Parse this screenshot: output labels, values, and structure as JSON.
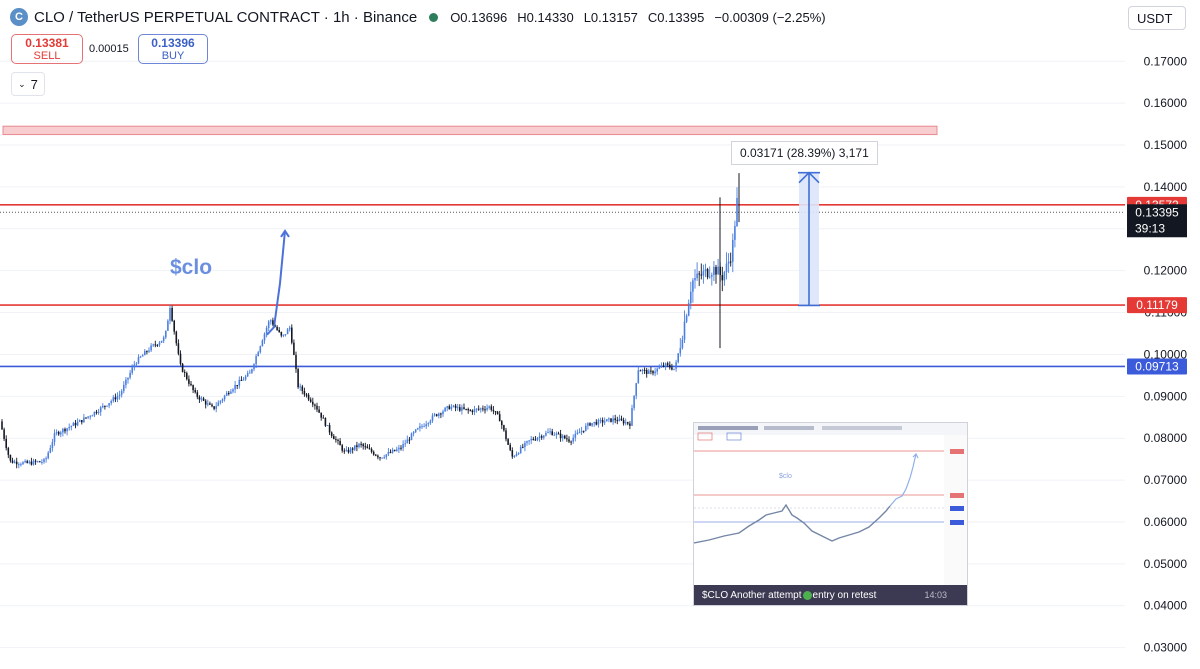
{
  "header": {
    "title": "CLO / TetherUS PERPETUAL CONTRACT · 1h · Binance",
    "open": "O0.13696",
    "high": "H0.14330",
    "low": "L0.13157",
    "close": "C0.13395",
    "change": "−0.00309 (−2.25%)"
  },
  "currency": "USDT",
  "sell": {
    "price": "0.13381",
    "label": "SELL"
  },
  "buy": {
    "price": "0.13396",
    "label": "BUY"
  },
  "spread": "0.00015",
  "indicator_count": "7",
  "measure_label": "0.03171 (28.39%) 3,171",
  "annotation": "$clo",
  "inset": {
    "caption_before": "$CLO Another attempt",
    "caption_after": "entry on retest",
    "time": "14:03"
  },
  "colors": {
    "support_blue": "#3b5bdb",
    "resistance_red": "#e53935",
    "zone_fill": "#f8cdd0",
    "arrow_blue": "#3f6fd6"
  },
  "chart_data": {
    "type": "candlestick",
    "ylim": [
      0.025,
      0.179
    ],
    "y_ticks": [
      "0.17000",
      "0.16000",
      "0.15000",
      "0.14000",
      "0.13000",
      "0.12000",
      "0.11000",
      "0.10000",
      "0.09000",
      "0.08000",
      "0.07000",
      "0.06000",
      "0.05000",
      "0.04000",
      "0.03000"
    ],
    "y_tick_values": [
      0.17,
      0.16,
      0.15,
      0.14,
      0.13,
      0.12,
      0.11,
      0.1,
      0.09,
      0.08,
      0.07,
      0.06,
      0.05,
      0.04,
      0.03
    ],
    "price_path": [
      [
        0,
        0.084
      ],
      [
        10,
        0.0745
      ],
      [
        25,
        0.074
      ],
      [
        45,
        0.0745
      ],
      [
        55,
        0.081
      ],
      [
        80,
        0.084
      ],
      [
        100,
        0.087
      ],
      [
        120,
        0.0905
      ],
      [
        135,
        0.098
      ],
      [
        150,
        0.1015
      ],
      [
        165,
        0.104
      ],
      [
        170,
        0.1115
      ],
      [
        180,
        0.0975
      ],
      [
        195,
        0.0905
      ],
      [
        213,
        0.087
      ],
      [
        230,
        0.0915
      ],
      [
        250,
        0.0955
      ],
      [
        262,
        0.1035
      ],
      [
        270,
        0.1085
      ],
      [
        282,
        0.104
      ],
      [
        290,
        0.1065
      ],
      [
        298,
        0.0925
      ],
      [
        315,
        0.088
      ],
      [
        330,
        0.0815
      ],
      [
        345,
        0.0765
      ],
      [
        360,
        0.0785
      ],
      [
        380,
        0.0755
      ],
      [
        400,
        0.0775
      ],
      [
        415,
        0.0815
      ],
      [
        435,
        0.0855
      ],
      [
        450,
        0.0875
      ],
      [
        470,
        0.0865
      ],
      [
        490,
        0.0875
      ],
      [
        500,
        0.0845
      ],
      [
        512,
        0.0755
      ],
      [
        530,
        0.0795
      ],
      [
        550,
        0.0815
      ],
      [
        570,
        0.0795
      ],
      [
        590,
        0.0835
      ],
      [
        615,
        0.0845
      ],
      [
        630,
        0.0835
      ],
      [
        638,
        0.0965
      ],
      [
        650,
        0.0955
      ],
      [
        665,
        0.0975
      ],
      [
        675,
        0.0965
      ],
      [
        682,
        0.1045
      ],
      [
        692,
        0.1175
      ],
      [
        705,
        0.1195
      ],
      [
        715,
        0.1205
      ],
      [
        722,
        0.1185
      ],
      [
        726,
        0.1205
      ],
      [
        732,
        0.1245
      ],
      [
        737,
        0.1365
      ],
      [
        739,
        0.134
      ]
    ],
    "wicks": [
      {
        "x": 720,
        "high": 0.1375,
        "low": 0.1015
      },
      {
        "x": 739,
        "high": 0.1433,
        "low": 0.1316
      }
    ],
    "current_price": 0.13395,
    "current_countdown": "39:13",
    "levels": [
      {
        "price": 0.13572,
        "label": "0.13572",
        "color": "#e53935"
      },
      {
        "price": 0.11179,
        "label": "0.11179",
        "color": "#e53935"
      },
      {
        "price": 0.09713,
        "label": "0.09713",
        "color": "#3b5bdb"
      }
    ],
    "zone": {
      "top": 0.1545,
      "bottom": 0.1525
    },
    "measure": {
      "from": 0.1117,
      "to": 0.1434
    },
    "annotation_arrow": [
      [
        267,
        0.1047
      ],
      [
        274,
        0.1065
      ],
      [
        280,
        0.117
      ],
      [
        285,
        0.1295
      ]
    ]
  }
}
